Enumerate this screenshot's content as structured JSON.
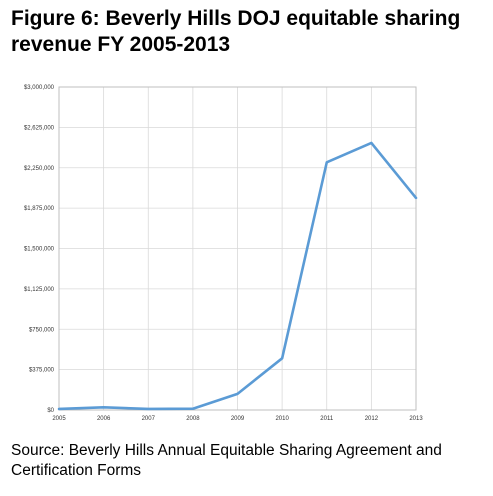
{
  "figure": {
    "title": "Figure 6: Beverly Hills DOJ equitable sharing revenue FY 2005-2013",
    "source": "Source: Beverly Hills Annual Equitable Sharing Agreement and Certification Forms"
  },
  "colors": {
    "line": "#5b9bd5",
    "grid": "#d9d9d9",
    "axis": "#bfbfbf",
    "text": "#000000"
  },
  "chart_data": {
    "type": "line",
    "title": "",
    "xlabel": "",
    "ylabel": "",
    "x": [
      "2005",
      "2006",
      "2007",
      "2008",
      "2009",
      "2010",
      "2011",
      "2012",
      "2013"
    ],
    "series": [
      {
        "values": [
          10000,
          25000,
          10000,
          12000,
          150000,
          480000,
          2300000,
          2480000,
          1970000
        ]
      }
    ],
    "ylim": [
      0,
      3000000
    ],
    "yticks": [
      0,
      375000,
      750000,
      1125000,
      1500000,
      1875000,
      2250000,
      2625000,
      3000000
    ],
    "ytick_labels": [
      "$0",
      "$375,000",
      "$750,000",
      "$1,125,000",
      "$1,500,000",
      "$1,875,000",
      "$2,250,000",
      "$2,625,000",
      "$3,000,000"
    ],
    "grid": true,
    "legend": "none"
  }
}
